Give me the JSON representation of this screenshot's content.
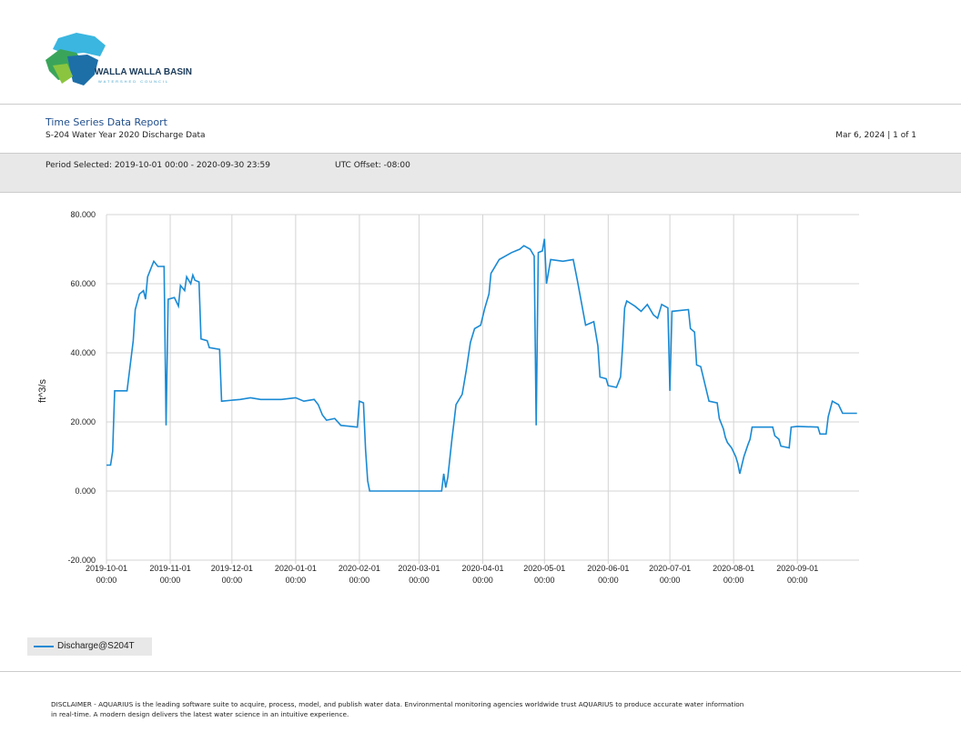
{
  "header": {
    "org": "WALLA WALLA BASIN",
    "org_sub": "WATERSHED COUNCIL"
  },
  "report": {
    "title": "Time Series Data Report",
    "subtitle": "S-204 Water Year 2020 Discharge Data",
    "date_page": "Mar 6, 2024 | 1 of 1",
    "period": "Period Selected: 2019-10-01 00:00 - 2020-09-30 23:59",
    "utc": "UTC Offset: -08:00"
  },
  "chart_data": {
    "type": "line",
    "y_label": "ft^3/s",
    "xlim": [
      "2019-10-01 00:00",
      "2020-09-30 23:59"
    ],
    "xticks": [
      "2019-10-01 00:00",
      "2019-11-01 00:00",
      "2019-12-01 00:00",
      "2020-01-01 00:00",
      "2020-02-01 00:00",
      "2020-03-01 00:00",
      "2020-04-01 00:00",
      "2020-05-01 00:00",
      "2020-06-01 00:00",
      "2020-07-01 00:00",
      "2020-08-01 00:00",
      "2020-09-01 00:00"
    ],
    "ylim": [
      -20,
      80
    ],
    "yticks": [
      {
        "value": -20,
        "label": "-20.000"
      },
      {
        "value": 0,
        "label": "0.000"
      },
      {
        "value": 20,
        "label": "20.000"
      },
      {
        "value": 40,
        "label": "40.000"
      },
      {
        "value": 60,
        "label": "60.000"
      },
      {
        "value": 80,
        "label": "80.000"
      }
    ],
    "grid": true,
    "x": [
      "2019-10-01",
      "2019-10-03",
      "2019-10-04",
      "2019-10-05",
      "2019-10-11",
      "2019-10-14",
      "2019-10-15",
      "2019-10-17",
      "2019-10-19",
      "2019-10-20",
      "2019-10-21",
      "2019-10-23",
      "2019-10-24",
      "2019-10-26",
      "2019-10-29",
      "2019-10-30",
      "2019-10-31",
      "2019-11-03",
      "2019-11-05",
      "2019-11-06",
      "2019-11-08",
      "2019-11-09",
      "2019-11-11",
      "2019-11-12",
      "2019-11-13",
      "2019-11-15",
      "2019-11-16",
      "2019-11-19",
      "2019-11-20",
      "2019-11-25",
      "2019-11-26",
      "2019-12-05",
      "2019-12-10",
      "2019-12-15",
      "2019-12-25",
      "2020-01-01",
      "2020-01-05",
      "2020-01-10",
      "2020-01-12",
      "2020-01-14",
      "2020-01-16",
      "2020-01-20",
      "2020-01-23",
      "2020-01-31",
      "2020-02-01",
      "2020-02-03",
      "2020-02-04",
      "2020-02-05",
      "2020-02-06",
      "2020-03-12",
      "2020-03-13",
      "2020-03-14",
      "2020-03-15",
      "2020-03-17",
      "2020-03-18",
      "2020-03-19",
      "2020-03-22",
      "2020-03-24",
      "2020-03-26",
      "2020-03-28",
      "2020-03-31",
      "2020-04-02",
      "2020-04-04",
      "2020-04-05",
      "2020-04-06",
      "2020-04-09",
      "2020-04-15",
      "2020-04-19",
      "2020-04-21",
      "2020-04-24",
      "2020-04-26",
      "2020-04-27",
      "2020-04-28",
      "2020-04-30",
      "2020-05-01",
      "2020-05-02",
      "2020-05-04",
      "2020-05-10",
      "2020-05-15",
      "2020-05-17",
      "2020-05-21",
      "2020-05-25",
      "2020-05-27",
      "2020-05-28",
      "2020-05-31",
      "2020-06-01",
      "2020-06-05",
      "2020-06-07",
      "2020-06-08",
      "2020-06-09",
      "2020-06-10",
      "2020-06-14",
      "2020-06-17",
      "2020-06-20",
      "2020-06-23",
      "2020-06-25",
      "2020-06-27",
      "2020-06-30",
      "2020-07-01",
      "2020-07-02",
      "2020-07-10",
      "2020-07-11",
      "2020-07-13",
      "2020-07-14",
      "2020-07-16",
      "2020-07-20",
      "2020-07-24",
      "2020-07-25",
      "2020-07-27",
      "2020-07-28",
      "2020-07-29",
      "2020-07-31",
      "2020-08-02",
      "2020-08-03",
      "2020-08-04",
      "2020-08-06",
      "2020-08-08",
      "2020-08-09",
      "2020-08-10",
      "2020-08-20",
      "2020-08-21",
      "2020-08-23",
      "2020-08-24",
      "2020-08-28",
      "2020-08-29",
      "2020-09-01",
      "2020-09-11",
      "2020-09-12",
      "2020-09-15",
      "2020-09-16",
      "2020-09-18",
      "2020-09-21",
      "2020-09-23",
      "2020-09-30"
    ],
    "series": [
      {
        "name": "Discharge@S204T",
        "color": "#1a8ad4",
        "values": [
          7.5,
          7.5,
          11.5,
          29,
          29,
          43.5,
          52.5,
          57,
          58,
          55.5,
          62,
          65,
          66.5,
          65,
          65,
          19,
          55.5,
          56,
          53.5,
          59.5,
          58,
          62,
          60,
          62.5,
          61,
          60.5,
          44,
          43.5,
          41.5,
          41,
          26,
          26.5,
          27,
          26.5,
          26.5,
          27,
          26,
          26.5,
          25,
          22,
          20.5,
          21,
          19,
          18.5,
          26,
          25.5,
          12,
          3,
          0,
          0,
          5,
          1,
          4,
          15,
          20,
          25,
          28,
          35,
          43,
          47,
          48,
          53,
          57,
          63,
          64,
          67,
          69,
          70,
          71,
          70,
          68,
          19,
          69,
          69.5,
          73,
          60,
          67,
          66.5,
          67,
          61,
          48,
          49,
          42,
          33,
          32.5,
          30.5,
          30,
          33,
          42,
          53,
          55,
          53.5,
          52,
          54,
          51,
          50,
          54,
          53,
          29,
          52,
          52.5,
          47,
          46,
          36.5,
          36,
          26,
          25.5,
          21,
          18,
          15.5,
          14,
          12.5,
          10,
          8,
          5,
          10,
          13.5,
          15,
          18.5,
          18.5,
          16,
          15,
          13,
          12.5,
          18.5,
          18.7,
          18.5,
          16.5,
          16.5,
          21.5,
          26,
          25,
          22.5,
          22.5
        ]
      }
    ]
  },
  "footer": {
    "disclaimer": "DISCLAIMER - AQUARIUS is the leading software suite to acquire, process, model, and publish water data. Environmental monitoring agencies worldwide trust AQUARIUS to produce accurate water information in real-time. A modern design delivers the latest water science in an intuitive experience."
  }
}
